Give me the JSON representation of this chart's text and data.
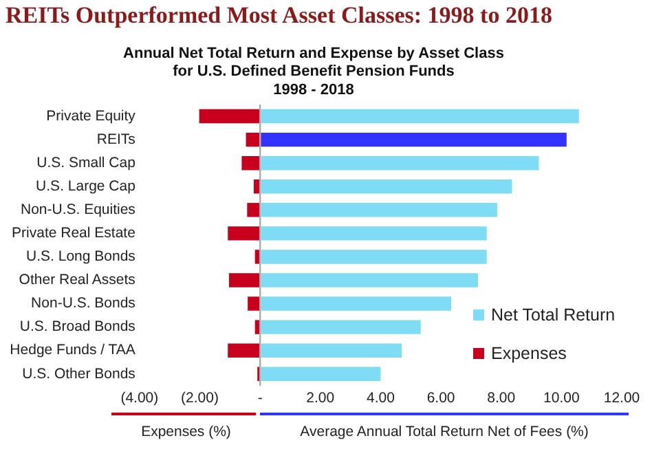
{
  "chart_data": {
    "type": "bar",
    "orientation": "horizontal",
    "stacked": true,
    "title": "REITs Outperformed Most Asset Classes: 1998 to 2018",
    "subtitle": "Annual Net Total Return and Expense by Asset Class\nfor U.S. Defined Benefit Pension Funds\n1998 - 2018",
    "categories": [
      "Private Equity",
      "REITs",
      "U.S. Small Cap",
      "U.S. Large Cap",
      "Non-U.S. Equities",
      "Private Real Estate",
      "U.S. Long Bonds",
      "Other Real Assets",
      "Non-U.S. Bonds",
      "U.S. Broad Bonds",
      "Hedge Funds / TAA",
      "U.S. Other Bonds"
    ],
    "series": [
      {
        "name": "Net Total Return",
        "color": "#80dcf5",
        "colors": [
          "#80dcf5",
          "#3333ff",
          "#80dcf5",
          "#80dcf5",
          "#80dcf5",
          "#80dcf5",
          "#80dcf5",
          "#80dcf5",
          "#80dcf5",
          "#80dcf5",
          "#80dcf5",
          "#80dcf5"
        ],
        "values": [
          10.58,
          10.17,
          9.25,
          8.36,
          7.87,
          7.52,
          7.52,
          7.23,
          6.34,
          5.33,
          4.7,
          4.0
        ]
      },
      {
        "name": "Expenses",
        "color": "#c8001e",
        "values": [
          -2.02,
          -0.47,
          -0.61,
          -0.21,
          -0.43,
          -1.07,
          -0.17,
          -1.03,
          -0.41,
          -0.17,
          -1.07,
          -0.09
        ]
      }
    ],
    "xlim": [
      -4,
      12
    ],
    "xticks": [
      {
        "value": -4,
        "label": "(4.00)"
      },
      {
        "value": -2,
        "label": "(2.00)"
      },
      {
        "value": 0,
        "label": "-"
      },
      {
        "value": 2,
        "label": "2.00"
      },
      {
        "value": 4,
        "label": "4.00"
      },
      {
        "value": 6,
        "label": "6.00"
      },
      {
        "value": 8,
        "label": "8.00"
      },
      {
        "value": 10,
        "label": "10.00"
      },
      {
        "value": 12,
        "label": "12.00"
      }
    ],
    "xlabel": "Average Annual Total Return Net of Fees (%)",
    "annotations": [
      "Expenses (%)"
    ],
    "ref_lines": [
      {
        "axis": "x",
        "value": 0,
        "color": "#aaaaaa"
      }
    ],
    "legend": "bottom right"
  }
}
